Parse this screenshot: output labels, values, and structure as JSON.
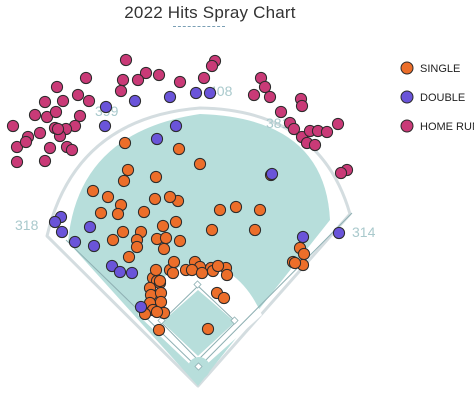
{
  "chart_data": {
    "type": "scatter",
    "title": "2022 Hits Spray Chart",
    "legend": {
      "placement": "right",
      "entries": [
        {
          "key": "single",
          "label": "SINGLE",
          "color": "#ec6e2a"
        },
        {
          "key": "double",
          "label": "DOUBLE",
          "color": "#6a54d9"
        },
        {
          "key": "home_run",
          "label": "HOME RUN",
          "color": "#c93a77"
        }
      ]
    },
    "fence_distances": [
      {
        "id": "lf",
        "label": "318"
      },
      {
        "id": "lc",
        "label": "399"
      },
      {
        "id": "cf",
        "label": "408"
      },
      {
        "id": "rc",
        "label": "381"
      },
      {
        "id": "rf",
        "label": "314"
      }
    ],
    "series": [
      {
        "key": "single",
        "name": "SINGLE",
        "points": [
          [
            125,
            143
          ],
          [
            128,
            170
          ],
          [
            124,
            181
          ],
          [
            156,
            177
          ],
          [
            179,
            149
          ],
          [
            200,
            164
          ],
          [
            93,
            191
          ],
          [
            108,
            197
          ],
          [
            121,
            205
          ],
          [
            118,
            214
          ],
          [
            101,
            213
          ],
          [
            123,
            232
          ],
          [
            144,
            212
          ],
          [
            141,
            232
          ],
          [
            163,
            226
          ],
          [
            176,
            222
          ],
          [
            178,
            201
          ],
          [
            170,
            197
          ],
          [
            155,
            199
          ],
          [
            113,
            240
          ],
          [
            137,
            240
          ],
          [
            137,
            247
          ],
          [
            129,
            257
          ],
          [
            164,
            249
          ],
          [
            157,
            239
          ],
          [
            166,
            238
          ],
          [
            180,
            241
          ],
          [
            220,
            210
          ],
          [
            236,
            207
          ],
          [
            260,
            210
          ],
          [
            212,
            230
          ],
          [
            255,
            230
          ],
          [
            271,
            175
          ],
          [
            300,
            248
          ],
          [
            304,
            254
          ],
          [
            293,
            262
          ],
          [
            303,
            265
          ],
          [
            295,
            263
          ],
          [
            170,
            270
          ],
          [
            173,
            273
          ],
          [
            186,
            270
          ],
          [
            195,
            262
          ],
          [
            200,
            267
          ],
          [
            211,
            268
          ],
          [
            213,
            271
          ],
          [
            226,
            268
          ],
          [
            227,
            275
          ],
          [
            153,
            278
          ],
          [
            157,
            281
          ],
          [
            150,
            288
          ],
          [
            151,
            295
          ],
          [
            150,
            303
          ],
          [
            153,
            310
          ],
          [
            160,
            283
          ],
          [
            161,
            293
          ],
          [
            161,
            302
          ],
          [
            164,
            313
          ],
          [
            157,
            312
          ],
          [
            217,
            293
          ],
          [
            224,
            298
          ],
          [
            159,
            330
          ],
          [
            208,
            329
          ],
          [
            160,
            281
          ],
          [
            156,
            270
          ],
          [
            174,
            262
          ],
          [
            192,
            270
          ],
          [
            202,
            273
          ],
          [
            218,
            266
          ],
          [
            145,
            314
          ]
        ]
      },
      {
        "key": "double",
        "name": "DOUBLE",
        "points": [
          [
            135,
            101
          ],
          [
            170,
            97
          ],
          [
            196,
            93
          ],
          [
            210,
            93
          ],
          [
            176,
            126
          ],
          [
            105,
            126
          ],
          [
            61,
            217
          ],
          [
            55,
            222
          ],
          [
            62,
            232
          ],
          [
            75,
            242
          ],
          [
            94,
            246
          ],
          [
            90,
            227
          ],
          [
            112,
            266
          ],
          [
            120,
            272
          ],
          [
            132,
            273
          ],
          [
            141,
            307
          ],
          [
            272,
            174
          ],
          [
            303,
            237
          ],
          [
            339,
            233
          ],
          [
            106,
            107
          ],
          [
            157,
            139
          ]
        ]
      },
      {
        "key": "home_run",
        "name": "HOME RUN",
        "points": [
          [
            126,
            60
          ],
          [
            146,
            73
          ],
          [
            159,
            75
          ],
          [
            180,
            82
          ],
          [
            204,
            78
          ],
          [
            215,
            61
          ],
          [
            123,
            80
          ],
          [
            121,
            91
          ],
          [
            138,
            80
          ],
          [
            86,
            78
          ],
          [
            89,
            101
          ],
          [
            57,
            87
          ],
          [
            45,
            102
          ],
          [
            35,
            115
          ],
          [
            47,
            117
          ],
          [
            13,
            126
          ],
          [
            17,
            147
          ],
          [
            28,
            137
          ],
          [
            40,
            133
          ],
          [
            56,
            112
          ],
          [
            63,
            101
          ],
          [
            78,
            95
          ],
          [
            80,
            116
          ],
          [
            75,
            126
          ],
          [
            66,
            129
          ],
          [
            60,
            136
          ],
          [
            67,
            147
          ],
          [
            72,
            150
          ],
          [
            50,
            148
          ],
          [
            45,
            161
          ],
          [
            17,
            162
          ],
          [
            26,
            142
          ],
          [
            55,
            128
          ],
          [
            58,
            129
          ],
          [
            261,
            78
          ],
          [
            265,
            87
          ],
          [
            270,
            97
          ],
          [
            281,
            112
          ],
          [
            301,
            99
          ],
          [
            302,
            106
          ],
          [
            290,
            123
          ],
          [
            294,
            129
          ],
          [
            302,
            137
          ],
          [
            307,
            143
          ],
          [
            310,
            131
          ],
          [
            315,
            145
          ],
          [
            318,
            131
          ],
          [
            327,
            132
          ],
          [
            338,
            124
          ],
          [
            347,
            170
          ],
          [
            341,
            173
          ],
          [
            212,
            66
          ],
          [
            254,
            95
          ]
        ]
      }
    ]
  }
}
